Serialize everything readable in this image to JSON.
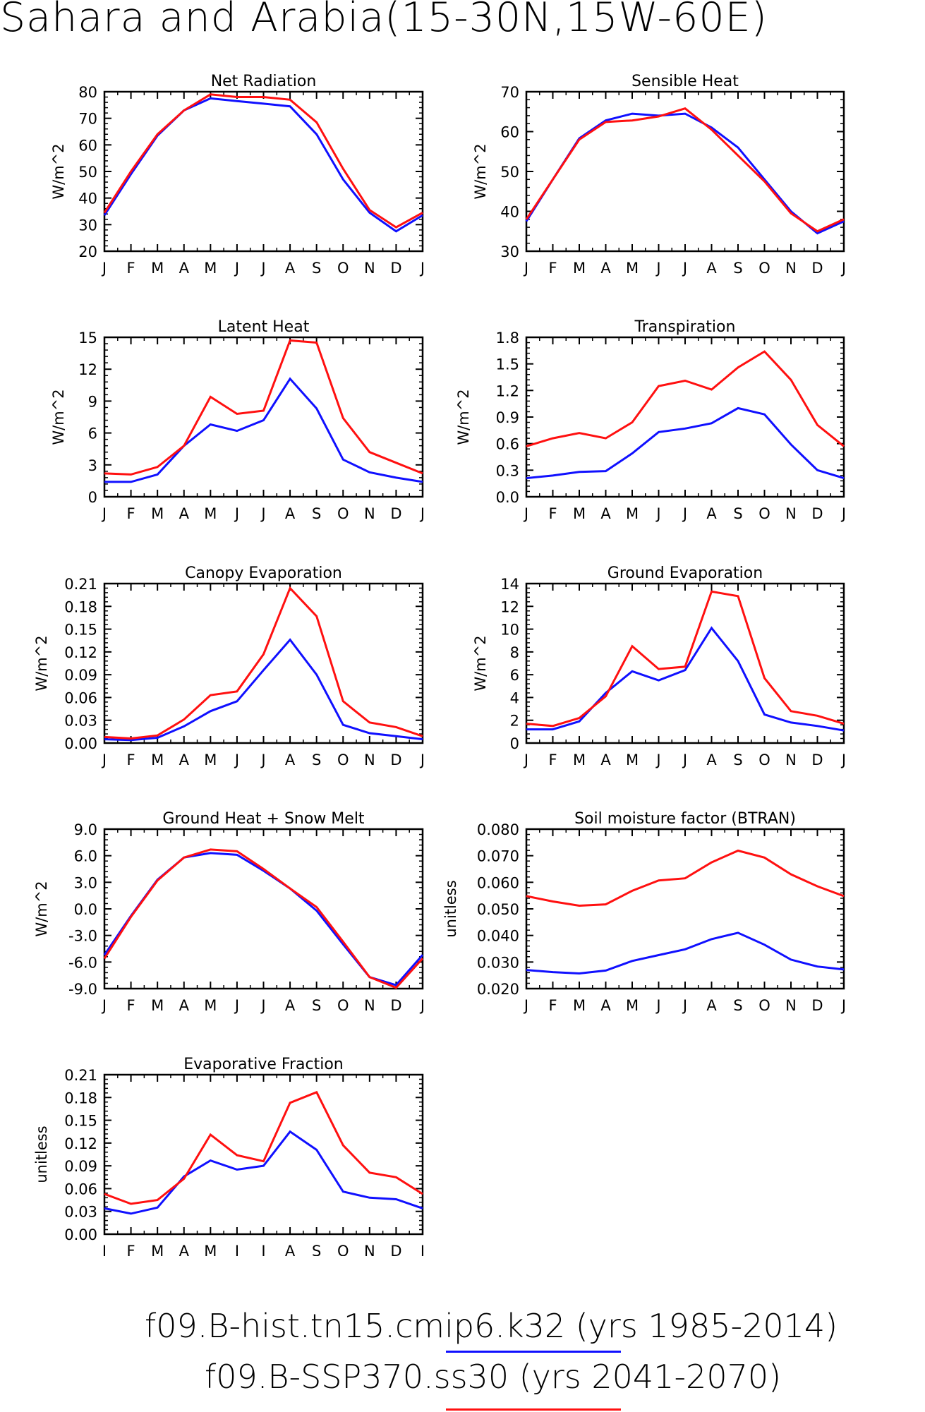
{
  "title": "Sahara and Arabia(15-30N,15W-60E)",
  "months": [
    "J",
    "F",
    "M",
    "A",
    "M",
    "J",
    "J",
    "A",
    "S",
    "O",
    "N",
    "D",
    "J"
  ],
  "legend": [
    {
      "label": "f09.B-hist.tn15.cmip6.k32 (yrs 1985-2014)",
      "color": "#1010ff"
    },
    {
      "label": "f09.B-SSP370.ss30 (yrs 2041-2070)",
      "color": "#ff1010"
    }
  ],
  "colors": {
    "hist": "#1010ff",
    "ssp": "#ff1010"
  },
  "chart_data": [
    {
      "type": "line",
      "title": "Net Radiation",
      "ylabel": "W/m^2",
      "ylim": [
        20,
        80
      ],
      "yticks": [
        "20",
        "30",
        "40",
        "50",
        "60",
        "70",
        "80"
      ],
      "series": [
        {
          "values": [
            33.5,
            49,
            63.5,
            73,
            77.5,
            76.5,
            75.5,
            74.5,
            64,
            47,
            34.5,
            27.5,
            33.5
          ]
        },
        {
          "values": [
            34.5,
            50,
            64,
            73,
            79,
            78,
            78,
            77,
            68.5,
            51,
            35.5,
            29,
            34.5
          ]
        }
      ]
    },
    {
      "type": "line",
      "title": "Sensible Heat",
      "ylabel": "W/m^2",
      "ylim": [
        30,
        70
      ],
      "yticks": [
        "30",
        "40",
        "50",
        "60",
        "70"
      ],
      "series": [
        {
          "values": [
            37.5,
            48,
            58.3,
            62.8,
            64.5,
            64,
            64.5,
            61,
            56,
            48,
            40,
            34.5,
            37.5
          ]
        },
        {
          "values": [
            38,
            48,
            58,
            62.4,
            62.8,
            63.8,
            65.8,
            60.5,
            54,
            47.5,
            39.5,
            35,
            38
          ]
        }
      ]
    },
    {
      "type": "line",
      "title": "Latent Heat",
      "ylabel": "W/m^2",
      "ylim": [
        0,
        15
      ],
      "yticks": [
        "0",
        "3",
        "6",
        "9",
        "12",
        "15"
      ],
      "series": [
        {
          "values": [
            1.4,
            1.4,
            2.1,
            4.8,
            6.8,
            6.2,
            7.2,
            11.1,
            8.3,
            3.5,
            2.3,
            1.8,
            1.4
          ]
        },
        {
          "values": [
            2.2,
            2.1,
            2.8,
            4.8,
            9.4,
            7.8,
            8.1,
            14.7,
            14.5,
            7.4,
            4.2,
            3.2,
            2.2
          ]
        }
      ]
    },
    {
      "type": "line",
      "title": "Transpiration",
      "ylabel": "W/m^2",
      "ylim": [
        0,
        1.8
      ],
      "yticks": [
        "0.0",
        "0.3",
        "0.6",
        "0.9",
        "1.2",
        "1.5",
        "1.8"
      ],
      "series": [
        {
          "values": [
            0.21,
            0.24,
            0.28,
            0.29,
            0.49,
            0.73,
            0.77,
            0.83,
            1.0,
            0.93,
            0.59,
            0.3,
            0.21
          ]
        },
        {
          "values": [
            0.57,
            0.66,
            0.72,
            0.66,
            0.84,
            1.25,
            1.31,
            1.21,
            1.46,
            1.64,
            1.32,
            0.81,
            0.57
          ]
        }
      ]
    },
    {
      "type": "line",
      "title": "Canopy Evaporation",
      "ylabel": "W/m^2",
      "ylim": [
        0,
        0.21
      ],
      "yticks": [
        "0.00",
        "0.03",
        "0.06",
        "0.09",
        "0.12",
        "0.15",
        "0.18",
        "0.21"
      ],
      "series": [
        {
          "values": [
            0.005,
            0.004,
            0.007,
            0.022,
            0.042,
            0.055,
            0.096,
            0.136,
            0.09,
            0.024,
            0.013,
            0.009,
            0.005
          ]
        },
        {
          "values": [
            0.008,
            0.006,
            0.01,
            0.031,
            0.063,
            0.068,
            0.117,
            0.204,
            0.167,
            0.055,
            0.027,
            0.021,
            0.009
          ]
        }
      ]
    },
    {
      "type": "line",
      "title": "Ground Evaporation",
      "ylabel": "W/m^2",
      "ylim": [
        0,
        14
      ],
      "yticks": [
        "0",
        "2",
        "4",
        "6",
        "8",
        "10",
        "12",
        "14"
      ],
      "series": [
        {
          "values": [
            1.2,
            1.2,
            1.9,
            4.4,
            6.3,
            5.5,
            6.4,
            10.1,
            7.2,
            2.5,
            1.8,
            1.5,
            1.1
          ]
        },
        {
          "values": [
            1.7,
            1.5,
            2.2,
            4.1,
            8.5,
            6.5,
            6.7,
            13.3,
            12.9,
            5.7,
            2.8,
            2.4,
            1.7
          ]
        }
      ]
    },
    {
      "type": "line",
      "title": "Ground Heat + Snow Melt",
      "ylabel": "W/m^2",
      "ylim": [
        -9,
        9
      ],
      "yticks": [
        "-9.0",
        "-6.0",
        "-3.0",
        "0.0",
        "3.0",
        "6.0",
        "9.0"
      ],
      "series": [
        {
          "values": [
            -5.2,
            -0.8,
            3.3,
            5.8,
            6.3,
            6.1,
            4.3,
            2.3,
            -0.2,
            -4.0,
            -7.7,
            -8.6,
            -5.2
          ]
        },
        {
          "values": [
            -5.6,
            -0.9,
            3.2,
            5.8,
            6.7,
            6.5,
            4.5,
            2.3,
            0.2,
            -3.7,
            -7.7,
            -8.9,
            -5.6
          ]
        }
      ]
    },
    {
      "type": "line",
      "title": "Soil moisture factor (BTRAN)",
      "ylabel": "unitless",
      "ylim": [
        0.02,
        0.08
      ],
      "yticks": [
        "0.020",
        "0.030",
        "0.040",
        "0.050",
        "0.060",
        "0.070",
        "0.080"
      ],
      "series": [
        {
          "values": [
            0.027,
            0.0262,
            0.0257,
            0.0268,
            0.0304,
            0.0326,
            0.0348,
            0.0386,
            0.041,
            0.0365,
            0.0309,
            0.0283,
            0.0272
          ]
        },
        {
          "values": [
            0.0548,
            0.0528,
            0.0512,
            0.0517,
            0.0568,
            0.0607,
            0.0615,
            0.0675,
            0.0719,
            0.0693,
            0.063,
            0.0585,
            0.0548
          ]
        }
      ]
    },
    {
      "type": "line",
      "title": "Evaporative Fraction",
      "ylabel": "unitless",
      "ylim": [
        0,
        0.21
      ],
      "yticks": [
        "0.00",
        "0.03",
        "0.06",
        "0.09",
        "0.12",
        "0.15",
        "0.18",
        "0.21"
      ],
      "series": [
        {
          "values": [
            0.034,
            0.027,
            0.035,
            0.076,
            0.097,
            0.085,
            0.09,
            0.135,
            0.111,
            0.056,
            0.048,
            0.046,
            0.034
          ]
        },
        {
          "values": [
            0.053,
            0.04,
            0.045,
            0.073,
            0.131,
            0.104,
            0.096,
            0.173,
            0.187,
            0.117,
            0.081,
            0.075,
            0.053
          ]
        }
      ]
    }
  ]
}
